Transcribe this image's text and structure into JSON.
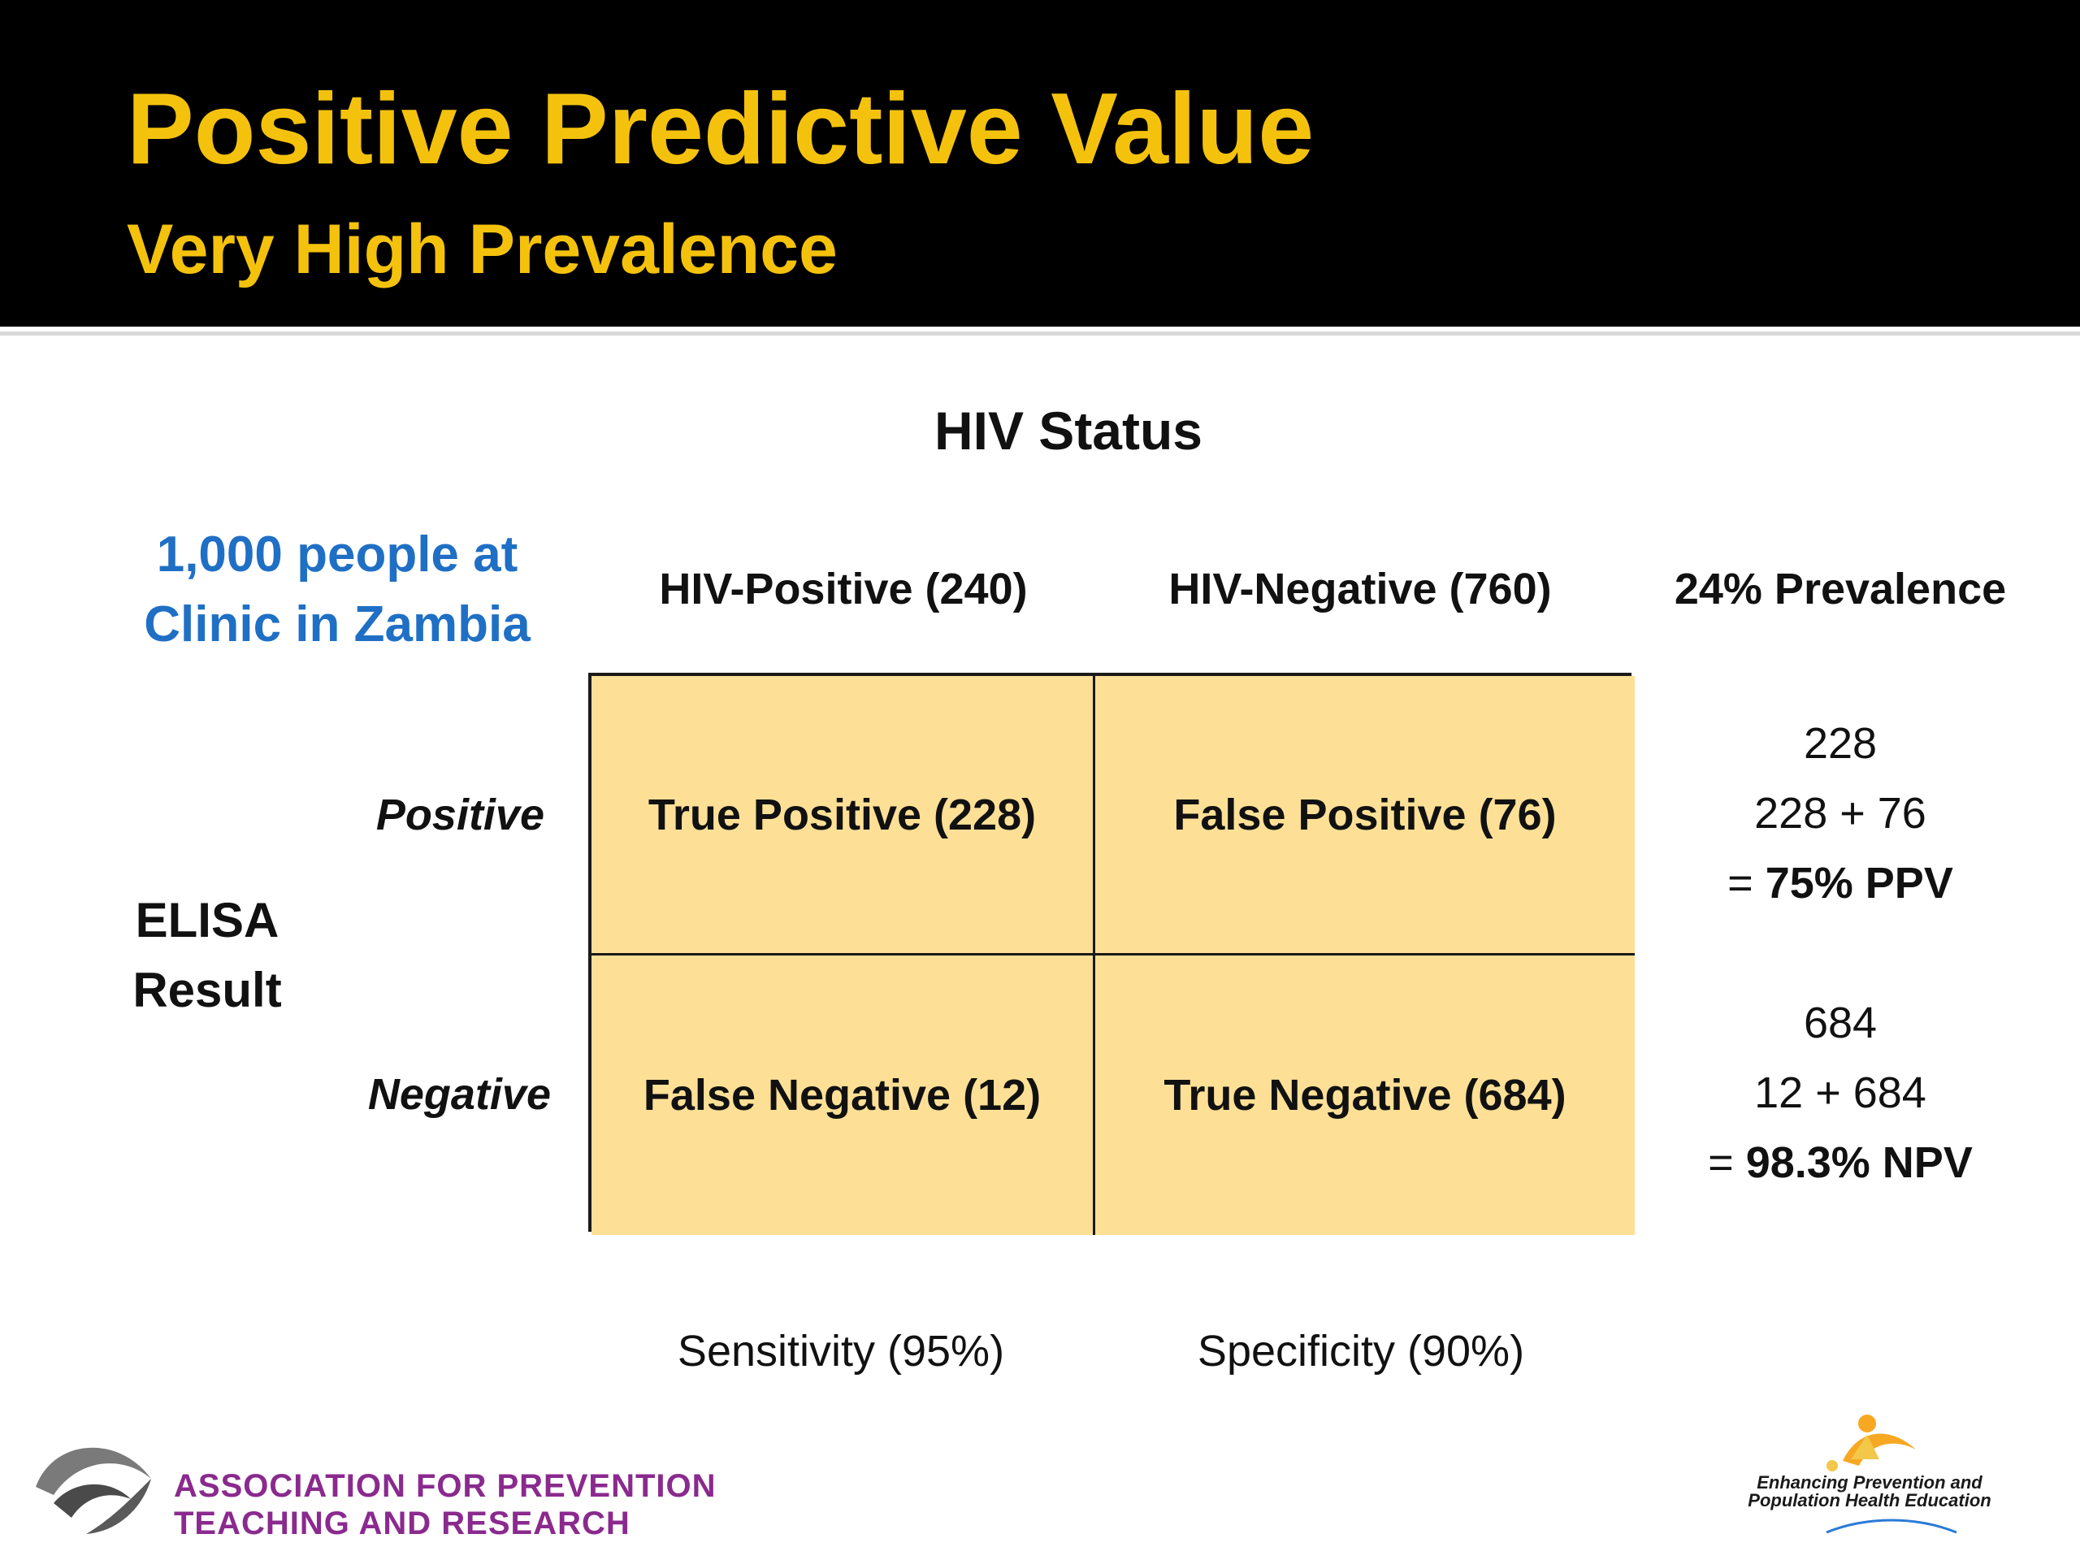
{
  "title": "Positive Predictive Value",
  "subtitle": "Very High Prevalence",
  "table": {
    "top_label": "HIV Status",
    "population_note": [
      "1,000 people at",
      "Clinic in Zambia"
    ],
    "column_headers": [
      "HIV-Positive (240)",
      "HIV-Negative (760)"
    ],
    "prevalence_header": "24% Prevalence",
    "row_group_label": [
      "ELISA",
      "Result"
    ],
    "row_labels": [
      "Positive",
      "Negative"
    ],
    "cells": [
      [
        "True Positive (228)",
        "False Positive (76)"
      ],
      [
        "False Negative (12)",
        "True Negative (684)"
      ]
    ],
    "ppv": {
      "numerator": "228",
      "denominator": "228 + 76",
      "result_prefix": "= ",
      "result": "75% PPV"
    },
    "npv": {
      "numerator": "684",
      "denominator": "12 + 684",
      "result_prefix": "= ",
      "result": "98.3% NPV"
    },
    "sensitivity": "Sensitivity (95%)",
    "specificity": "Specificity (90%)"
  },
  "footer": {
    "aptr_line1": "ASSOCIATION FOR PREVENTION",
    "aptr_line2": "TEACHING AND RESEARCH",
    "ephpe_line1": "Enhancing Prevention and",
    "ephpe_line2": "Population Health Education"
  },
  "colors": {
    "title": "#f4c20d",
    "header_background": "#000000",
    "cell_fill": "#fde096",
    "accent_blue": "#1f6fc5",
    "aptr_purple": "#8a2a8e"
  }
}
